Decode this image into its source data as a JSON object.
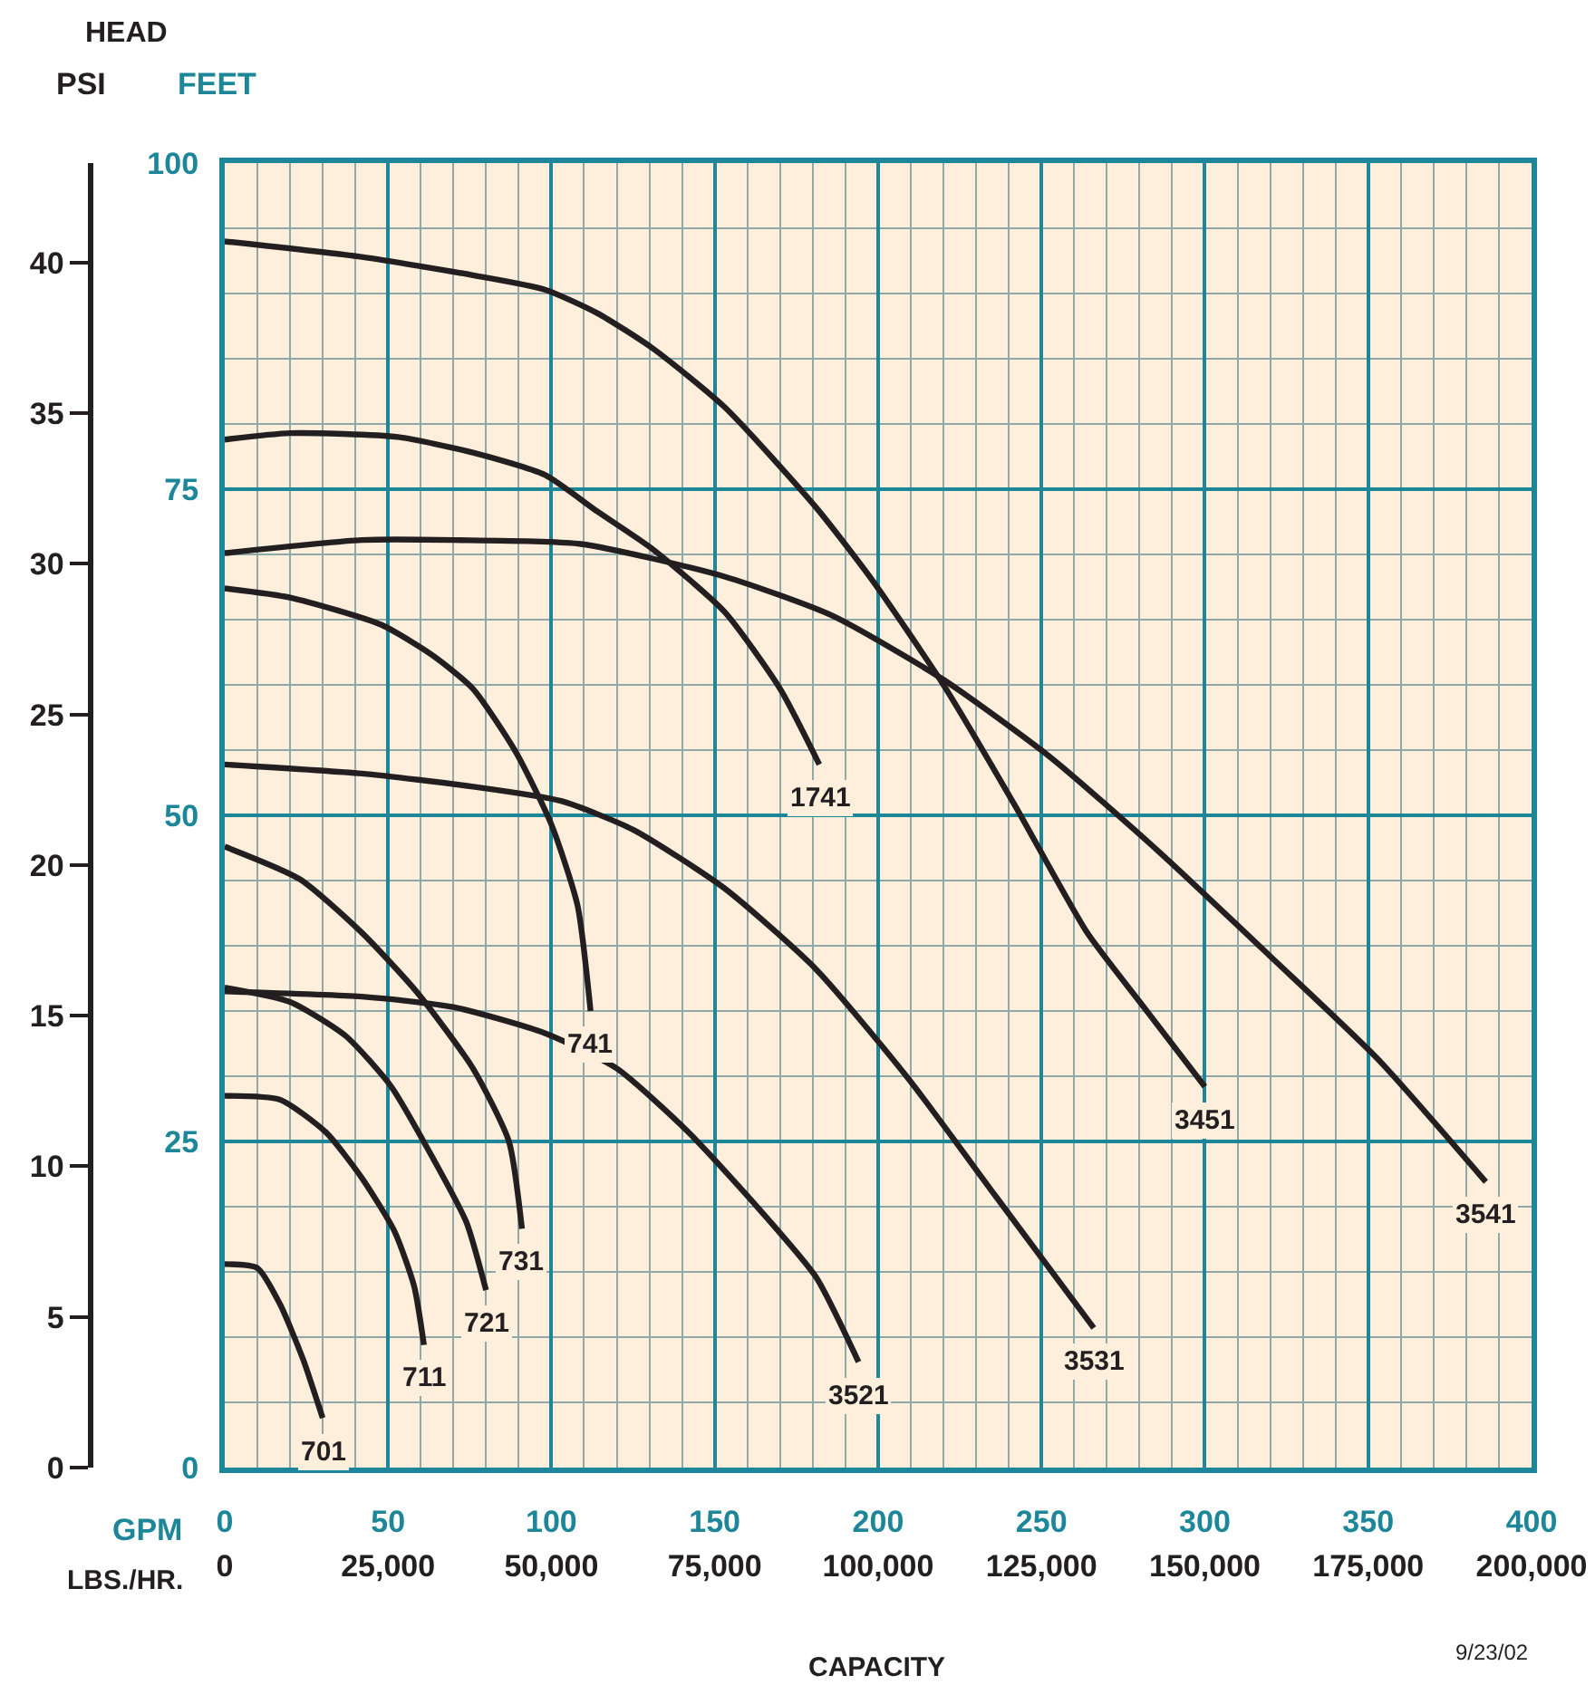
{
  "chart_data": {
    "type": "line",
    "xlabel": "GPM",
    "x2label": "LBS./HR.",
    "ylabel": "FEET",
    "y2label": "PSI",
    "xlim": [
      0,
      400
    ],
    "xticks": [
      0,
      50,
      100,
      150,
      200,
      250,
      300,
      350,
      400
    ],
    "x2lim": [
      0,
      200000
    ],
    "x2ticks": [
      0,
      {
        "value": 25000,
        "label": "25,000"
      },
      {
        "value": 50000,
        "label": "50,000"
      },
      {
        "value": 75000,
        "label": "75,000"
      },
      {
        "value": 100000,
        "label": "100,000"
      },
      {
        "value": 125000,
        "label": "125,000"
      },
      {
        "value": 150000,
        "label": "150,000"
      },
      {
        "value": 175000,
        "label": "175,000"
      },
      {
        "value": 200000,
        "label": "200,000"
      }
    ],
    "ylim": [
      0,
      100
    ],
    "yticks": [
      0,
      25,
      50,
      75,
      100
    ],
    "y2lim": [
      0,
      43.3
    ],
    "y2ticks": [
      0,
      5,
      10,
      15,
      20,
      25,
      30,
      35,
      40
    ],
    "grid": true,
    "legend": false,
    "marker": "none",
    "line_style": "solid",
    "annotations": [
      "HEAD",
      "CAPACITY",
      "9/23/02"
    ],
    "series": [
      {
        "name": "3451",
        "color": "#231f20",
        "x": [
          0,
          42,
          76,
          98,
          114,
          131,
          153,
          181,
          198,
          220,
          242,
          264,
          281,
          300
        ],
        "values": [
          94,
          92.8,
          91.4,
          90.3,
          88.5,
          85.8,
          81.3,
          73.6,
          68.1,
          60,
          50.7,
          41,
          35.4,
          29.2
        ]
      },
      {
        "name": "1741",
        "color": "#231f20",
        "x": [
          0,
          20,
          53,
          76,
          98,
          114,
          131,
          153,
          170,
          182
        ],
        "values": [
          78.8,
          79.3,
          79,
          77.8,
          76.1,
          73.3,
          70.4,
          65.6,
          59.7,
          53.9
        ]
      },
      {
        "name": "3541",
        "color": "#231f20",
        "x": [
          0,
          42,
          70,
          109,
          153,
          186,
          220,
          253,
          286,
          320,
          353,
          386
        ],
        "values": [
          70.1,
          71.1,
          71.1,
          70.8,
          68.3,
          65.3,
          60.4,
          54.4,
          47.2,
          39.2,
          31.3,
          21.9
        ]
      },
      {
        "name": "741",
        "color": "#231f20",
        "x": [
          0,
          20,
          48,
          64,
          76,
          89,
          100,
          108,
          112
        ],
        "values": [
          67.4,
          66.7,
          64.6,
          62.2,
          59.7,
          54.9,
          49.3,
          43.1,
          35
        ]
      },
      {
        "name": "3531",
        "color": "#231f20",
        "x": [
          0,
          42,
          76,
          103,
          125,
          153,
          181,
          209,
          236,
          266
        ],
        "values": [
          53.9,
          53.2,
          52.2,
          51.1,
          48.9,
          44.4,
          38.2,
          29.9,
          20.8,
          10.7
        ]
      },
      {
        "name": "731",
        "color": "#231f20",
        "x": [
          0,
          23,
          42,
          59,
          76,
          87,
          91
        ],
        "values": [
          47.6,
          45.1,
          41,
          36.4,
          30.6,
          25,
          18.3
        ]
      },
      {
        "name": "3521",
        "color": "#231f20",
        "x": [
          0,
          42,
          70,
          98,
          120,
          142,
          164,
          181,
          194
        ],
        "values": [
          36.5,
          36.1,
          35.3,
          33.3,
          30.6,
          25.7,
          19.7,
          14.6,
          8.1
        ]
      },
      {
        "name": "721",
        "color": "#231f20",
        "x": [
          0,
          20,
          37,
          51,
          64,
          74,
          80
        ],
        "values": [
          36.8,
          35.7,
          33.1,
          29.2,
          23.6,
          18.8,
          13.6
        ]
      },
      {
        "name": "711",
        "color": "#231f20",
        "x": [
          0,
          17,
          31,
          42,
          52,
          58,
          61
        ],
        "values": [
          28.5,
          28.2,
          25.7,
          22.2,
          18.1,
          13.9,
          9.4
        ]
      },
      {
        "name": "701",
        "color": "#231f20",
        "x": [
          0,
          10,
          17,
          24,
          30
        ],
        "values": [
          15.6,
          15.3,
          12.5,
          8.3,
          3.8
        ]
      }
    ]
  }
}
